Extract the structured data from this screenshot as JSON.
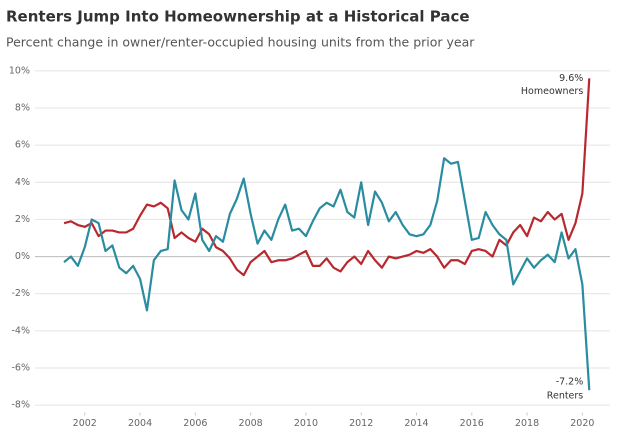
{
  "chart_data": {
    "type": "line",
    "title": "Renters Jump Into Homeownership at a Historical Pace",
    "subtitle": "Percent change in owner/renter-occupied housing units from the prior year",
    "x": [
      2001.25,
      2001.5,
      2001.75,
      2002,
      2002.25,
      2002.5,
      2002.75,
      2003,
      2003.25,
      2003.5,
      2003.75,
      2004,
      2004.25,
      2004.5,
      2004.75,
      2005,
      2005.25,
      2005.5,
      2005.75,
      2006,
      2006.25,
      2006.5,
      2006.75,
      2007,
      2007.25,
      2007.5,
      2007.75,
      2008,
      2008.25,
      2008.5,
      2008.75,
      2009,
      2009.25,
      2009.5,
      2009.75,
      2010,
      2010.25,
      2010.5,
      2010.75,
      2011,
      2011.25,
      2011.5,
      2011.75,
      2012,
      2012.25,
      2012.5,
      2012.75,
      2013,
      2013.25,
      2013.5,
      2013.75,
      2014,
      2014.25,
      2014.5,
      2014.75,
      2015,
      2015.25,
      2015.5,
      2015.75,
      2016,
      2016.25,
      2016.5,
      2016.75,
      2017,
      2017.25,
      2017.5,
      2017.75,
      2018,
      2018.25,
      2018.5,
      2018.75,
      2019,
      2019.25,
      2019.5,
      2019.75,
      2020,
      2020.25
    ],
    "series": [
      {
        "name": "Homeowners",
        "color": "#b8282e",
        "values": [
          1.8,
          1.9,
          1.7,
          1.6,
          1.8,
          1.1,
          1.4,
          1.4,
          1.3,
          1.3,
          1.5,
          2.2,
          2.8,
          2.7,
          2.9,
          2.6,
          1.0,
          1.3,
          1.0,
          0.8,
          1.5,
          1.2,
          0.5,
          0.3,
          -0.1,
          -0.7,
          -1.0,
          -0.3,
          0.0,
          0.3,
          -0.3,
          -0.2,
          -0.2,
          -0.1,
          0.1,
          0.3,
          -0.5,
          -0.5,
          -0.1,
          -0.6,
          -0.8,
          -0.3,
          0.0,
          -0.4,
          0.3,
          -0.2,
          -0.6,
          0.0,
          -0.1,
          0.0,
          0.1,
          0.3,
          0.2,
          0.4,
          0.0,
          -0.6,
          -0.2,
          -0.2,
          -0.4,
          0.3,
          0.4,
          0.3,
          0.0,
          0.9,
          0.6,
          1.3,
          1.7,
          1.1,
          2.1,
          1.9,
          2.4,
          2.0,
          2.3,
          0.9,
          1.8,
          3.4,
          9.6
        ],
        "value_labels": [
          null,
          null,
          null,
          null,
          null,
          null,
          null,
          null,
          null,
          null,
          null,
          null,
          null,
          null,
          null,
          null,
          null,
          null,
          null,
          null,
          null,
          null,
          null,
          null,
          null,
          null,
          null,
          null,
          null,
          null,
          null,
          null,
          null,
          null,
          null,
          null,
          null,
          null,
          null,
          null,
          null,
          null,
          null,
          null,
          null,
          null,
          null,
          null,
          null,
          null,
          null,
          null,
          null,
          null,
          null,
          null,
          null,
          null,
          null,
          null,
          null,
          null,
          null,
          null,
          null,
          null,
          null,
          null,
          null,
          null,
          null,
          null,
          null,
          null,
          null,
          null,
          "9.6%"
        ]
      },
      {
        "name": "Renters",
        "color": "#2a8ca0",
        "values": [
          -0.3,
          0.0,
          -0.5,
          0.5,
          2.0,
          1.8,
          0.3,
          0.6,
          -0.6,
          -0.9,
          -0.5,
          -1.2,
          -2.9,
          -0.2,
          0.3,
          0.4,
          4.1,
          2.5,
          2.0,
          3.4,
          0.9,
          0.3,
          1.1,
          0.8,
          2.3,
          3.1,
          4.2,
          2.3,
          0.7,
          1.4,
          0.9,
          2.0,
          2.8,
          1.4,
          1.5,
          1.1,
          1.9,
          2.6,
          2.9,
          2.7,
          3.6,
          2.4,
          2.1,
          4.0,
          1.7,
          3.5,
          2.9,
          1.9,
          2.4,
          1.7,
          1.2,
          1.1,
          1.2,
          1.7,
          3.0,
          5.3,
          5.0,
          5.1,
          3.0,
          0.9,
          1.0,
          2.4,
          1.7,
          1.2,
          0.9,
          -1.5,
          -0.8,
          -0.1,
          -0.6,
          -0.2,
          0.1,
          -0.3,
          1.3,
          -0.1,
          0.4,
          -1.5,
          -7.2
        ],
        "value_labels": [
          null,
          null,
          null,
          null,
          null,
          null,
          null,
          null,
          null,
          null,
          null,
          null,
          null,
          null,
          null,
          null,
          null,
          null,
          null,
          null,
          null,
          null,
          null,
          null,
          null,
          null,
          null,
          null,
          null,
          null,
          null,
          null,
          null,
          null,
          null,
          null,
          null,
          null,
          null,
          null,
          null,
          null,
          null,
          null,
          null,
          null,
          null,
          null,
          null,
          null,
          null,
          null,
          null,
          null,
          null,
          null,
          null,
          null,
          null,
          null,
          null,
          null,
          null,
          null,
          null,
          null,
          null,
          null,
          null,
          null,
          null,
          null,
          null,
          null,
          null,
          null,
          "-7.2%"
        ]
      }
    ],
    "xlim": [
      2000.2,
      2021
    ],
    "xticks": [
      2002,
      2004,
      2006,
      2008,
      2010,
      2012,
      2014,
      2016,
      2018,
      2020
    ],
    "ylim": [
      -8.4,
      10.4
    ],
    "yticks": [
      {
        "value": 10,
        "label": "10%"
      },
      {
        "value": 8,
        "label": "8%"
      },
      {
        "value": 6,
        "label": "6%"
      },
      {
        "value": 4,
        "label": "4%"
      },
      {
        "value": 2,
        "label": "2%"
      },
      {
        "value": 0,
        "label": "0%"
      },
      {
        "value": -2,
        "label": "-2%"
      },
      {
        "value": -4,
        "label": "-4%"
      },
      {
        "value": -6,
        "label": "-6%"
      },
      {
        "value": -8,
        "label": "-8%"
      }
    ],
    "grid": true
  }
}
